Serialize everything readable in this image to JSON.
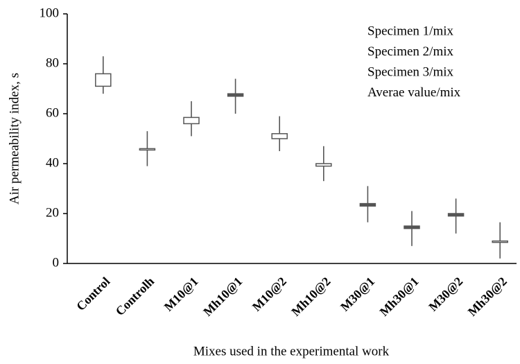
{
  "chart_data": {
    "type": "ohlc",
    "x_label": "Mixes used in the experimental work",
    "y_label": "Air permeability index, s",
    "categories": [
      "Control",
      "Controlh",
      "M10@1",
      "Mh10@1",
      "M10@2",
      "Mh10@2",
      "M30@1",
      "Mh30@1",
      "M30@2",
      "Mh30@2"
    ],
    "series": [
      {
        "name": "Specimen 1/mix",
        "values": [
          71,
          46,
          56,
          68,
          50,
          39,
          24,
          15,
          20,
          9
        ]
      },
      {
        "name": "Specimen 2/mix",
        "values": [
          83,
          53,
          65,
          74,
          59,
          47,
          31,
          21,
          26,
          16.5
        ]
      },
      {
        "name": "Specimen 3/mix",
        "values": [
          68,
          39,
          51,
          60,
          45,
          33,
          16.5,
          7,
          12,
          2
        ]
      },
      {
        "name": "Averae value/mix",
        "values": [
          76,
          46,
          58.5,
          67,
          52,
          40,
          23,
          14,
          19,
          9
        ]
      }
    ],
    "up_color": "#ffffff",
    "down_color": "#555555",
    "ylim": [
      0,
      100
    ],
    "yticks": [
      0,
      20,
      40,
      60,
      80,
      100
    ],
    "legend": "top-right"
  }
}
